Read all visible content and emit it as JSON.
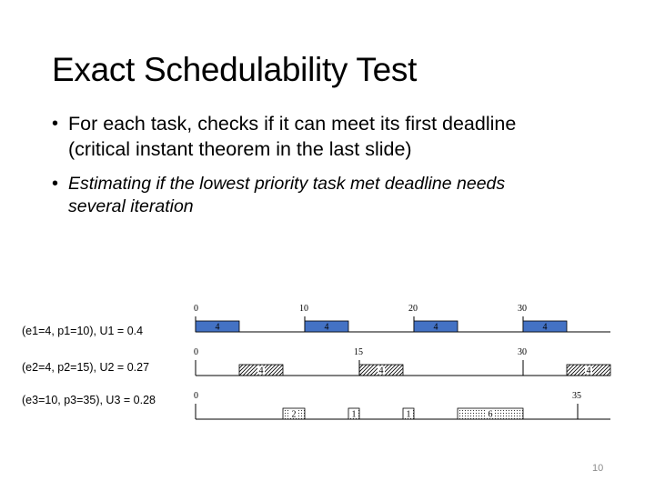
{
  "slide": {
    "title": "Exact Schedulability Test",
    "bullets": [
      {
        "lines": [
          "For each task, checks if it can meet its first deadline",
          "(critical instant theorem in the last slide)"
        ]
      },
      {
        "lines": [
          "Estimating if the lowest priority task met deadline needs",
          "several iteration"
        ]
      }
    ],
    "page_number": "10"
  },
  "timeline": {
    "time_unit": 1,
    "rows": [
      {
        "label": "(e1=4, p1=10), U1 = 0.4",
        "ticks": [
          0,
          10,
          20,
          30
        ],
        "jobs": [
          {
            "start": 0,
            "end": 4,
            "label": "4"
          },
          {
            "start": 10,
            "end": 14,
            "label": "4"
          },
          {
            "start": 20,
            "end": 24,
            "label": "4"
          },
          {
            "start": 30,
            "end": 34,
            "label": "4"
          }
        ],
        "fill": "solid",
        "color": "#4472c4"
      },
      {
        "label": "(e2=4, p2=15), U2 = 0.27",
        "ticks": [
          0,
          15,
          30
        ],
        "jobs": [
          {
            "start": 4,
            "end": 8,
            "label": "4"
          },
          {
            "start": 15,
            "end": 19,
            "label": "4"
          },
          {
            "start": 34,
            "end": 38,
            "label": "4"
          }
        ],
        "fill": "hatched",
        "color": "#000000"
      },
      {
        "label": "(e3=10, p3=35), U3 = 0.28",
        "ticks": [
          0,
          35
        ],
        "jobs": [
          {
            "start": 8,
            "end": 10,
            "label": "2"
          },
          {
            "start": 14,
            "end": 15,
            "label": "1"
          },
          {
            "start": 19,
            "end": 20,
            "label": "1"
          },
          {
            "start": 24,
            "end": 30,
            "label": "6"
          }
        ],
        "fill": "dotted",
        "color": "#000000"
      }
    ]
  }
}
